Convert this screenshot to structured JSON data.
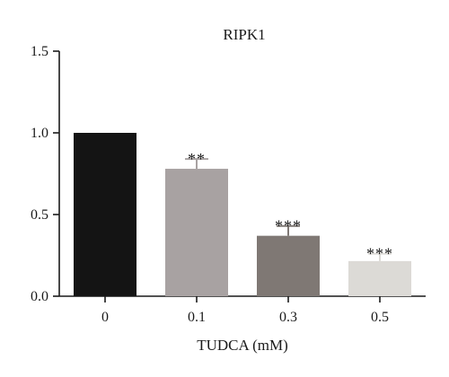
{
  "chart_data": {
    "type": "bar",
    "title": "RIPK1",
    "xlabel": "TUDCA (mM)",
    "ylabel": "",
    "categories": [
      "0",
      "0.1",
      "0.3",
      "0.5"
    ],
    "values": [
      1.0,
      0.78,
      0.37,
      0.215
    ],
    "errors": [
      0.0,
      0.06,
      0.06,
      0.045
    ],
    "significance": [
      "",
      "**",
      "***",
      "***"
    ],
    "bar_colors": [
      "#141414",
      "#a8a2a2",
      "#7f7874",
      "#dcdad6"
    ],
    "ylim": [
      0,
      1.5
    ],
    "yticks": [
      "0.0",
      "0.5",
      "1.0",
      "1.5"
    ],
    "ytick_values": [
      0,
      0.5,
      1.0,
      1.5
    ],
    "grid": false,
    "legend": "none"
  }
}
